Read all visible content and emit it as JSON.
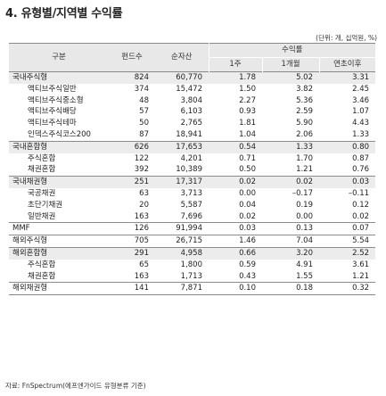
{
  "title": "4. 유형별/지역별 수익률",
  "unit": "(단위: 개, 십억원, %)",
  "headers": {
    "category": "구분",
    "funds": "펀드수",
    "assets": "순자산",
    "returns_group": "수익률",
    "r1w": "1주",
    "r1m": "1개월",
    "ytd": "연초이후"
  },
  "rows": [
    {
      "name": "국내주식형",
      "funds": "824",
      "assets": "60,770",
      "r1w": "1.78",
      "r1m": "5.02",
      "ytd": "3.31",
      "level": 0,
      "group": true,
      "sep": false
    },
    {
      "name": "액티브주식일반",
      "funds": "374",
      "assets": "15,472",
      "r1w": "1.50",
      "r1m": "3.82",
      "ytd": "2.45",
      "level": 1,
      "group": false,
      "sep": false
    },
    {
      "name": "액티브주식중소형",
      "funds": "48",
      "assets": "3,804",
      "r1w": "2.27",
      "r1m": "5.36",
      "ytd": "3.46",
      "level": 1,
      "group": false,
      "sep": false
    },
    {
      "name": "액티브주식배당",
      "funds": "57",
      "assets": "6,103",
      "r1w": "0.93",
      "r1m": "2.59",
      "ytd": "1.07",
      "level": 1,
      "group": false,
      "sep": false
    },
    {
      "name": "액티브주식테마",
      "funds": "50",
      "assets": "2,765",
      "r1w": "1.81",
      "r1m": "5.90",
      "ytd": "4.43",
      "level": 1,
      "group": false,
      "sep": false
    },
    {
      "name": "인덱스주식코스200",
      "funds": "87",
      "assets": "18,941",
      "r1w": "1.04",
      "r1m": "2.06",
      "ytd": "1.33",
      "level": 1,
      "group": false,
      "sep": false
    },
    {
      "name": "국내혼합형",
      "funds": "626",
      "assets": "17,653",
      "r1w": "0.54",
      "r1m": "1.33",
      "ytd": "0.80",
      "level": 0,
      "group": true,
      "sep": true
    },
    {
      "name": "주식혼합",
      "funds": "122",
      "assets": "4,201",
      "r1w": "0.71",
      "r1m": "1.70",
      "ytd": "0.87",
      "level": 1,
      "group": false,
      "sep": false
    },
    {
      "name": "채권혼합",
      "funds": "392",
      "assets": "10,389",
      "r1w": "0.50",
      "r1m": "1.21",
      "ytd": "0.76",
      "level": 1,
      "group": false,
      "sep": false
    },
    {
      "name": "국내채권형",
      "funds": "251",
      "assets": "17,317",
      "r1w": "0.02",
      "r1m": "0.02",
      "ytd": "0.03",
      "level": 0,
      "group": true,
      "sep": true
    },
    {
      "name": "국공채권",
      "funds": "63",
      "assets": "3,713",
      "r1w": "0.00",
      "r1m": "–0.17",
      "ytd": "–0.11",
      "level": 1,
      "group": false,
      "sep": false
    },
    {
      "name": "초단기채권",
      "funds": "20",
      "assets": "5,587",
      "r1w": "0.04",
      "r1m": "0.19",
      "ytd": "0.12",
      "level": 1,
      "group": false,
      "sep": false
    },
    {
      "name": "일반채권",
      "funds": "163",
      "assets": "7,696",
      "r1w": "0.02",
      "r1m": "0.00",
      "ytd": "0.02",
      "level": 1,
      "group": false,
      "sep": false
    },
    {
      "name": "MMF",
      "funds": "126",
      "assets": "91,994",
      "r1w": "0.03",
      "r1m": "0.13",
      "ytd": "0.07",
      "level": 0,
      "group": false,
      "sep": true
    },
    {
      "name": "해외주식형",
      "funds": "705",
      "assets": "26,715",
      "r1w": "1.46",
      "r1m": "7.04",
      "ytd": "5.54",
      "level": 0,
      "group": false,
      "sep": true
    },
    {
      "name": "해외혼합형",
      "funds": "291",
      "assets": "4,958",
      "r1w": "0.66",
      "r1m": "3.20",
      "ytd": "2.52",
      "level": 0,
      "group": true,
      "sep": true
    },
    {
      "name": "주식혼합",
      "funds": "65",
      "assets": "1,800",
      "r1w": "0.59",
      "r1m": "4.91",
      "ytd": "3.61",
      "level": 1,
      "group": false,
      "sep": false
    },
    {
      "name": "채권혼합",
      "funds": "163",
      "assets": "1,713",
      "r1w": "0.43",
      "r1m": "1.55",
      "ytd": "1.21",
      "level": 1,
      "group": false,
      "sep": false
    },
    {
      "name": "해외채권형",
      "funds": "141",
      "assets": "7,871",
      "r1w": "0.10",
      "r1m": "0.18",
      "ytd": "0.32",
      "level": 0,
      "group": false,
      "sep": true
    }
  ],
  "source": "자료: FnSpectrum(에프엔가이드 유형분류 기준)"
}
